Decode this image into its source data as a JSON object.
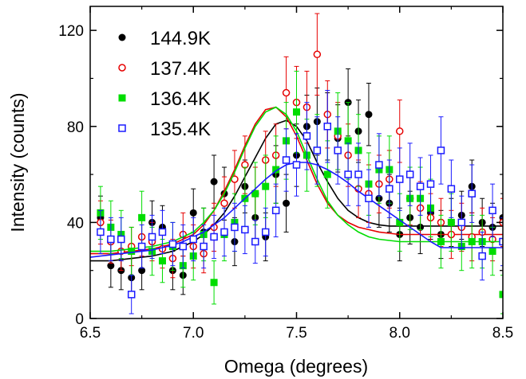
{
  "chart_data": {
    "type": "scatter",
    "title": "",
    "xlabel": "Omega (degrees)",
    "ylabel": "Intensity (counts)",
    "xlim": [
      6.5,
      8.5
    ],
    "ylim": [
      0,
      130
    ],
    "xticks": [
      "6.5",
      "7.0",
      "7.5",
      "8.0",
      "8.5"
    ],
    "yticks": [
      "0",
      "40",
      "80",
      "120"
    ],
    "xtick_values": [
      6.5,
      7.0,
      7.5,
      8.0,
      8.5
    ],
    "ytick_values": [
      0,
      40,
      80,
      120
    ],
    "grid": false,
    "legend_position": "top-left",
    "series": [
      {
        "name": "144.9K",
        "color": "#000000",
        "marker": "filled-circle",
        "x": [
          6.55,
          6.6,
          6.65,
          6.7,
          6.75,
          6.8,
          6.85,
          6.9,
          6.95,
          7.0,
          7.05,
          7.1,
          7.15,
          7.2,
          7.25,
          7.3,
          7.35,
          7.4,
          7.45,
          7.5,
          7.55,
          7.6,
          7.65,
          7.7,
          7.75,
          7.8,
          7.85,
          7.9,
          7.95,
          8.0,
          8.05,
          8.1,
          8.15,
          8.2,
          8.25,
          8.3,
          8.35,
          8.4,
          8.45,
          8.5
        ],
        "y": [
          42,
          22,
          20,
          17,
          20,
          40,
          38,
          20,
          18,
          44,
          36,
          57,
          52,
          32,
          55,
          42,
          34,
          60,
          48,
          68,
          80,
          82,
          80,
          75,
          90,
          78,
          85,
          50,
          48,
          35,
          42,
          38,
          44,
          35,
          40,
          43,
          55,
          40,
          38,
          42
        ],
        "err": [
          9,
          9,
          8,
          8,
          8,
          9,
          9,
          8,
          8,
          10,
          10,
          11,
          11,
          10,
          11,
          11,
          10,
          12,
          12,
          13,
          13,
          14,
          14,
          14,
          14,
          13,
          13,
          12,
          12,
          11,
          11,
          11,
          11,
          10,
          10,
          10,
          11,
          10,
          10,
          10
        ],
        "fit": [
          24,
          24,
          24,
          24.5,
          25,
          25.5,
          26,
          27,
          28,
          30,
          32,
          35,
          39,
          44,
          51,
          59,
          67,
          75,
          81,
          82.5,
          80,
          74,
          65,
          57,
          50,
          45,
          42,
          40,
          39,
          38.5,
          38.5,
          38.5,
          38.5,
          38.5,
          38.5
        ]
      },
      {
        "name": "137.4K",
        "color": "#e60000",
        "marker": "open-circle",
        "x": [
          6.55,
          6.6,
          6.65,
          6.7,
          6.75,
          6.8,
          6.85,
          6.9,
          6.95,
          7.0,
          7.05,
          7.1,
          7.15,
          7.2,
          7.25,
          7.3,
          7.35,
          7.4,
          7.45,
          7.5,
          7.55,
          7.6,
          7.65,
          7.7,
          7.75,
          7.8,
          7.85,
          7.9,
          7.95,
          8.0,
          8.05,
          8.1,
          8.15,
          8.2,
          8.25,
          8.3,
          8.35,
          8.4,
          8.45,
          8.5
        ],
        "y": [
          40,
          32,
          28,
          30,
          34,
          32,
          29,
          25,
          35,
          30,
          27,
          38,
          48,
          58,
          64,
          52,
          66,
          68,
          94,
          90,
          88,
          110,
          85,
          76,
          68,
          54,
          52,
          56,
          58,
          78,
          50,
          46,
          42,
          40,
          35,
          38,
          34,
          36,
          33,
          40
        ],
        "err": [
          9,
          9,
          8,
          8,
          8,
          8,
          8,
          8,
          9,
          9,
          8,
          10,
          11,
          12,
          12,
          11,
          12,
          13,
          15,
          15,
          15,
          17,
          14,
          14,
          13,
          12,
          12,
          12,
          12,
          13,
          11,
          11,
          10,
          10,
          10,
          10,
          10,
          10,
          9,
          10
        ],
        "fit": [
          27,
          27,
          27,
          27.5,
          28,
          28.5,
          29,
          30,
          31,
          33,
          35,
          39,
          45,
          53,
          62,
          72,
          81,
          87,
          88,
          84,
          76,
          66,
          56,
          48,
          43,
          40,
          38,
          37,
          36,
          35.5,
          35,
          35,
          35,
          35,
          35
        ]
      },
      {
        "name": "136.4K",
        "color": "#00dd00",
        "marker": "filled-square",
        "x": [
          6.55,
          6.6,
          6.65,
          6.7,
          6.75,
          6.8,
          6.85,
          6.9,
          6.95,
          7.0,
          7.05,
          7.1,
          7.15,
          7.2,
          7.25,
          7.3,
          7.35,
          7.4,
          7.45,
          7.5,
          7.55,
          7.6,
          7.65,
          7.7,
          7.75,
          7.8,
          7.85,
          7.9,
          7.95,
          8.0,
          8.05,
          8.1,
          8.15,
          8.2,
          8.25,
          8.3,
          8.35,
          8.4,
          8.45,
          8.5
        ],
        "y": [
          44,
          38,
          35,
          28,
          42,
          28,
          24,
          30,
          22,
          26,
          35,
          15,
          35,
          40,
          50,
          52,
          55,
          62,
          74,
          86,
          68,
          70,
          60,
          78,
          74,
          70,
          56,
          62,
          62,
          40,
          50,
          50,
          46,
          32,
          40,
          30,
          32,
          32,
          28,
          10
        ],
        "err": [
          11,
          11,
          10,
          10,
          11,
          10,
          9,
          10,
          9,
          10,
          11,
          9,
          11,
          12,
          13,
          13,
          13,
          14,
          16,
          17,
          15,
          15,
          14,
          16,
          16,
          15,
          13,
          14,
          14,
          12,
          13,
          13,
          12,
          11,
          12,
          10,
          11,
          11,
          10,
          8
        ],
        "fit": [
          28,
          28,
          28,
          28.5,
          29,
          29.5,
          30,
          31,
          32,
          34,
          36,
          40,
          45,
          52,
          61,
          71,
          80,
          86,
          88,
          85,
          78,
          68,
          58,
          49,
          43,
          39,
          36,
          34,
          33,
          32.5,
          32,
          32,
          32,
          32,
          32
        ]
      },
      {
        "name": "135.4K",
        "color": "#1a1aff",
        "marker": "open-square",
        "x": [
          6.55,
          6.6,
          6.65,
          6.7,
          6.75,
          6.8,
          6.85,
          6.9,
          6.95,
          7.0,
          7.05,
          7.1,
          7.15,
          7.2,
          7.25,
          7.3,
          7.35,
          7.4,
          7.45,
          7.5,
          7.55,
          7.6,
          7.65,
          7.7,
          7.75,
          7.8,
          7.85,
          7.9,
          7.95,
          8.0,
          8.05,
          8.1,
          8.15,
          8.2,
          8.25,
          8.3,
          8.35,
          8.4,
          8.45,
          8.5
        ],
        "y": [
          36,
          33,
          33,
          10,
          30,
          34,
          36,
          31,
          30,
          33,
          30,
          34,
          36,
          38,
          37,
          32,
          36,
          45,
          66,
          64,
          76,
          70,
          80,
          70,
          60,
          60,
          50,
          64,
          54,
          58,
          60,
          55,
          56,
          70,
          54,
          40,
          52,
          26,
          45,
          32
        ],
        "err": [
          9,
          9,
          9,
          8,
          9,
          9,
          9,
          9,
          9,
          9,
          9,
          9,
          10,
          10,
          10,
          9,
          10,
          11,
          13,
          13,
          14,
          14,
          15,
          14,
          13,
          13,
          12,
          13,
          12,
          13,
          13,
          12,
          12,
          14,
          12,
          11,
          12,
          10,
          11,
          10
        ],
        "fit": [
          25.5,
          26,
          26.5,
          27,
          27.5,
          28,
          28.5,
          29.5,
          30.5,
          32,
          34,
          36,
          39,
          42,
          46,
          50,
          54,
          58,
          61.5,
          64,
          65,
          65,
          64,
          62,
          59.5,
          56.5,
          53,
          50,
          47,
          44,
          41,
          38,
          35,
          32,
          29.5
        ]
      }
    ],
    "fit_x": [
      6.5,
      6.55,
      6.6,
      6.65,
      6.7,
      6.75,
      6.8,
      6.85,
      6.9,
      6.95,
      7.0,
      7.05,
      7.1,
      7.15,
      7.2,
      7.25,
      7.3,
      7.35,
      7.4,
      7.45,
      7.5,
      7.55,
      7.6,
      7.65,
      7.7,
      7.75,
      7.8,
      7.85,
      7.9,
      7.95,
      8.0,
      8.05,
      8.1,
      8.15,
      8.2
    ]
  }
}
